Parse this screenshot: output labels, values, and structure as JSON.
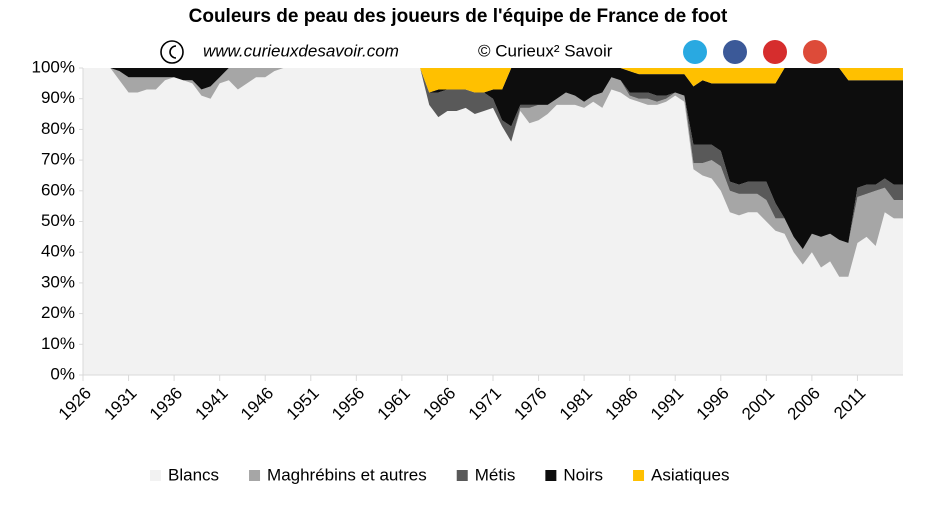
{
  "chart_data": {
    "type": "stacked_area",
    "title": "Couleurs de peau des joueurs de l'équipe de France de foot",
    "subtitle": "www.curieuxdesavoir.com",
    "credit": "© Curieux² Savoir",
    "x": [
      1926,
      1927,
      1928,
      1929,
      1930,
      1931,
      1932,
      1933,
      1934,
      1935,
      1936,
      1937,
      1938,
      1939,
      1940,
      1941,
      1942,
      1943,
      1944,
      1945,
      1946,
      1947,
      1948,
      1949,
      1950,
      1951,
      1952,
      1953,
      1954,
      1955,
      1956,
      1957,
      1958,
      1959,
      1960,
      1961,
      1962,
      1963,
      1964,
      1965,
      1966,
      1967,
      1968,
      1969,
      1970,
      1971,
      1972,
      1973,
      1974,
      1975,
      1976,
      1977,
      1978,
      1979,
      1980,
      1981,
      1982,
      1983,
      1984,
      1985,
      1986,
      1987,
      1988,
      1989,
      1990,
      1991,
      1992,
      1993,
      1994,
      1995,
      1996,
      1997,
      1998,
      1999,
      2000,
      2001,
      2002,
      2003,
      2004,
      2005,
      2006,
      2007,
      2008,
      2009,
      2010,
      2011,
      2012,
      2013,
      2014,
      2015,
      2016
    ],
    "series": [
      {
        "name": "Blancs",
        "color": "#f2f2f2",
        "values": [
          100,
          100,
          100,
          100,
          96,
          92,
          92,
          93,
          93,
          96,
          97,
          96,
          95,
          91,
          90,
          95,
          96,
          93,
          95,
          97,
          97,
          99,
          100,
          100,
          100,
          100,
          100,
          100,
          100,
          100,
          100,
          100,
          100,
          100,
          100,
          100,
          100,
          100,
          88,
          84,
          86,
          86,
          87,
          85,
          86,
          87,
          81,
          76,
          86,
          82,
          83,
          85,
          88,
          88,
          88,
          87,
          89,
          87,
          93,
          92,
          90,
          89,
          88,
          88,
          89,
          91,
          89,
          67,
          65,
          64,
          60,
          53,
          52,
          53,
          53,
          50,
          47,
          46,
          40,
          36,
          40,
          35,
          37,
          32,
          32,
          43,
          45,
          42,
          53,
          51,
          51
        ]
      },
      {
        "name": "Maghrébins et autres",
        "color": "#a6a6a6",
        "values": [
          0,
          0,
          0,
          0,
          3,
          5,
          5,
          4,
          4,
          1,
          0,
          0,
          1,
          2,
          4,
          2,
          4,
          7,
          5,
          3,
          3,
          1,
          0,
          0,
          0,
          0,
          0,
          0,
          0,
          0,
          0,
          0,
          0,
          0,
          0,
          0,
          0,
          0,
          0,
          0,
          0,
          0,
          0,
          0,
          0,
          0,
          0,
          0,
          1,
          5,
          5,
          3,
          2,
          4,
          3,
          2,
          2,
          5,
          4,
          4,
          1,
          1,
          2,
          1,
          1,
          1,
          2,
          2,
          4,
          6,
          8,
          7,
          7,
          6,
          6,
          7,
          4,
          5,
          5,
          5,
          6,
          10,
          9,
          12,
          11,
          15,
          14,
          18,
          8,
          6,
          6
        ]
      },
      {
        "name": "Métis",
        "color": "#595959",
        "values": [
          0,
          0,
          0,
          0,
          0,
          0,
          0,
          0,
          0,
          0,
          0,
          0,
          0,
          0,
          0,
          0,
          0,
          0,
          0,
          0,
          0,
          0,
          0,
          0,
          0,
          0,
          0,
          0,
          0,
          0,
          0,
          0,
          0,
          0,
          0,
          0,
          0,
          0,
          4,
          8,
          7,
          7,
          6,
          7,
          6,
          3,
          2,
          5,
          1,
          1,
          0,
          0,
          0,
          0,
          0,
          0,
          0,
          0,
          0,
          0,
          1,
          2,
          2,
          2,
          1,
          0,
          0,
          6,
          6,
          5,
          5,
          3,
          3,
          4,
          4,
          6,
          5,
          0,
          0,
          0,
          0,
          0,
          0,
          0,
          0,
          3,
          3,
          2,
          3,
          5,
          5
        ]
      },
      {
        "name": "Noirs",
        "color": "#0d0d0d",
        "values": [
          0,
          0,
          0,
          0,
          1,
          3,
          3,
          3,
          3,
          3,
          3,
          4,
          4,
          7,
          6,
          3,
          0,
          0,
          0,
          0,
          0,
          0,
          0,
          0,
          0,
          0,
          0,
          0,
          0,
          0,
          0,
          0,
          0,
          0,
          0,
          0,
          0,
          0,
          0,
          1,
          0,
          0,
          0,
          0,
          0,
          3,
          10,
          19,
          12,
          12,
          12,
          12,
          10,
          8,
          9,
          11,
          9,
          8,
          3,
          4,
          7,
          6,
          6,
          7,
          7,
          6,
          7,
          19,
          21,
          20,
          22,
          32,
          33,
          32,
          32,
          32,
          39,
          49,
          55,
          59,
          54,
          55,
          54,
          56,
          53,
          35,
          34,
          34,
          32,
          34,
          34
        ]
      },
      {
        "name": "Asiatiques",
        "color": "#ffc000",
        "values": [
          0,
          0,
          0,
          0,
          0,
          0,
          0,
          0,
          0,
          0,
          0,
          0,
          0,
          0,
          0,
          0,
          0,
          0,
          0,
          0,
          0,
          0,
          0,
          0,
          0,
          0,
          0,
          0,
          0,
          0,
          0,
          0,
          0,
          0,
          0,
          0,
          0,
          0,
          8,
          7,
          7,
          7,
          7,
          8,
          8,
          7,
          7,
          0,
          0,
          0,
          0,
          0,
          0,
          0,
          0,
          0,
          0,
          0,
          0,
          0,
          1,
          2,
          2,
          2,
          2,
          2,
          2,
          6,
          4,
          5,
          5,
          5,
          5,
          5,
          5,
          5,
          5,
          0,
          0,
          0,
          0,
          0,
          0,
          0,
          4,
          4,
          4,
          4,
          4,
          4,
          4
        ]
      }
    ],
    "xlim": [
      1926,
      2016
    ],
    "xticks": [
      1926,
      1931,
      1936,
      1941,
      1946,
      1951,
      1956,
      1961,
      1966,
      1971,
      1976,
      1981,
      1986,
      1991,
      1996,
      2001,
      2006,
      2011
    ],
    "ylim": [
      0,
      100
    ],
    "yticks": [
      {
        "value": 0,
        "label": "0%"
      },
      {
        "value": 10,
        "label": "10%"
      },
      {
        "value": 20,
        "label": "20%"
      },
      {
        "value": 30,
        "label": "30%"
      },
      {
        "value": 40,
        "label": "40%"
      },
      {
        "value": 50,
        "label": "50%"
      },
      {
        "value": 60,
        "label": "60%"
      },
      {
        "value": 70,
        "label": "70%"
      },
      {
        "value": 80,
        "label": "80%"
      },
      {
        "value": 90,
        "label": "90%"
      },
      {
        "value": 100,
        "label": "100%"
      }
    ],
    "grid": false,
    "legend": "bottom"
  }
}
